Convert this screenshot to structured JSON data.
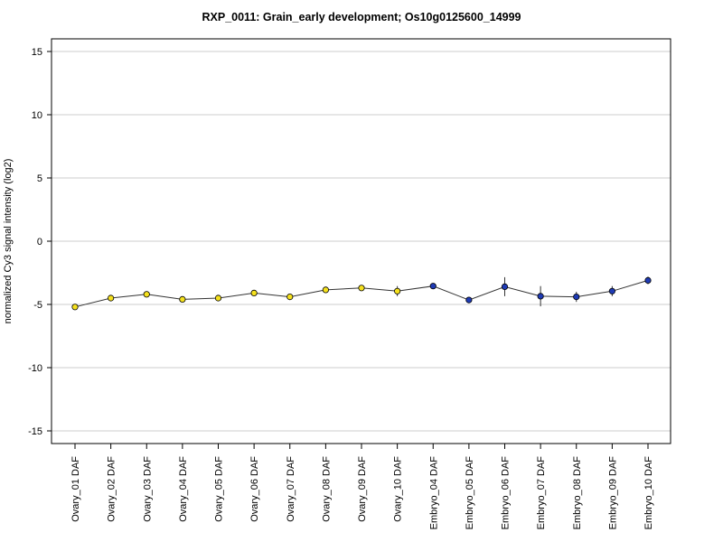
{
  "chart_data": {
    "type": "line",
    "title": "RXP_0011: Grain_early development; Os10g0125600_14999",
    "ylabel": "normalized Cy3 signal intensity (log2)",
    "xlabel": "",
    "ylim": [
      -16,
      16
    ],
    "yticks": [
      -15,
      -10,
      -5,
      0,
      5,
      10,
      15
    ],
    "grid": "horizontal",
    "categories": [
      "Ovary_01 DAF",
      "Ovary_02 DAF",
      "Ovary_03 DAF",
      "Ovary_04 DAF",
      "Ovary_05 DAF",
      "Ovary_06 DAF",
      "Ovary_07 DAF",
      "Ovary_08 DAF",
      "Ovary_09 DAF",
      "Ovary_10 DAF",
      "Embryo_04 DAF",
      "Embryo_05 DAF",
      "Embryo_06 DAF",
      "Embryo_07 DAF",
      "Embryo_08 DAF",
      "Embryo_09 DAF",
      "Embryo_10 DAF"
    ],
    "values": [
      -5.2,
      -4.5,
      -4.2,
      -4.6,
      -4.5,
      -4.1,
      -4.4,
      -3.85,
      -3.7,
      -3.95,
      -3.55,
      -4.65,
      -3.6,
      -4.35,
      -4.4,
      -3.95,
      -3.1
    ],
    "errors": [
      0.15,
      0.15,
      0.15,
      0.15,
      0.15,
      0.15,
      0.15,
      0.15,
      0.15,
      0.4,
      0.15,
      0.2,
      0.75,
      0.8,
      0.4,
      0.4,
      0.3
    ],
    "point_colors": [
      "#f5e11e",
      "#f5e11e",
      "#f5e11e",
      "#f5e11e",
      "#f5e11e",
      "#f5e11e",
      "#f5e11e",
      "#f5e11e",
      "#f5e11e",
      "#f5e11e",
      "#1f3bb5",
      "#1f3bb5",
      "#1f3bb5",
      "#1f3bb5",
      "#1f3bb5",
      "#1f3bb5",
      "#1f3bb5"
    ],
    "line_color": "#333333",
    "grid_color": "#cccccc"
  }
}
